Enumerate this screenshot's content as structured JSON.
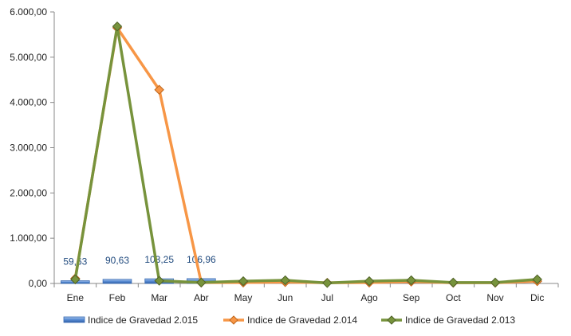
{
  "chart_data": {
    "type": "bar+line",
    "categories": [
      "Ene",
      "Feb",
      "Mar",
      "Abr",
      "May",
      "Jun",
      "Jul",
      "Ago",
      "Sep",
      "Oct",
      "Nov",
      "Dic"
    ],
    "ylim": [
      0,
      6000
    ],
    "yticks": [
      0,
      1000,
      2000,
      3000,
      4000,
      5000,
      6000
    ],
    "ytick_labels": [
      "0,00",
      "1.000,00",
      "2.000,00",
      "3.000,00",
      "4.000,00",
      "5.000,00",
      "6.000,00"
    ],
    "grid": false,
    "legend_position": "bottom",
    "bar_series": {
      "name": "Indice de Gravedad 2.015",
      "color": "#4f81bd",
      "values": [
        59.63,
        90.63,
        103.25,
        106.96,
        null,
        null,
        null,
        null,
        null,
        null,
        null,
        null
      ],
      "labels": [
        "59,63",
        "90,63",
        "103,25",
        "106,96"
      ]
    },
    "line_series": [
      {
        "name": "Indice de Gravedad 2.014",
        "color": "#f79646",
        "values": [
          110,
          5650,
          4280,
          20,
          20,
          30,
          15,
          20,
          40,
          15,
          15,
          50
        ]
      },
      {
        "name": "Indice de Gravedad  2.013",
        "color": "#77933c",
        "values": [
          90,
          5680,
          60,
          20,
          50,
          70,
          10,
          50,
          70,
          20,
          20,
          90
        ]
      }
    ]
  }
}
